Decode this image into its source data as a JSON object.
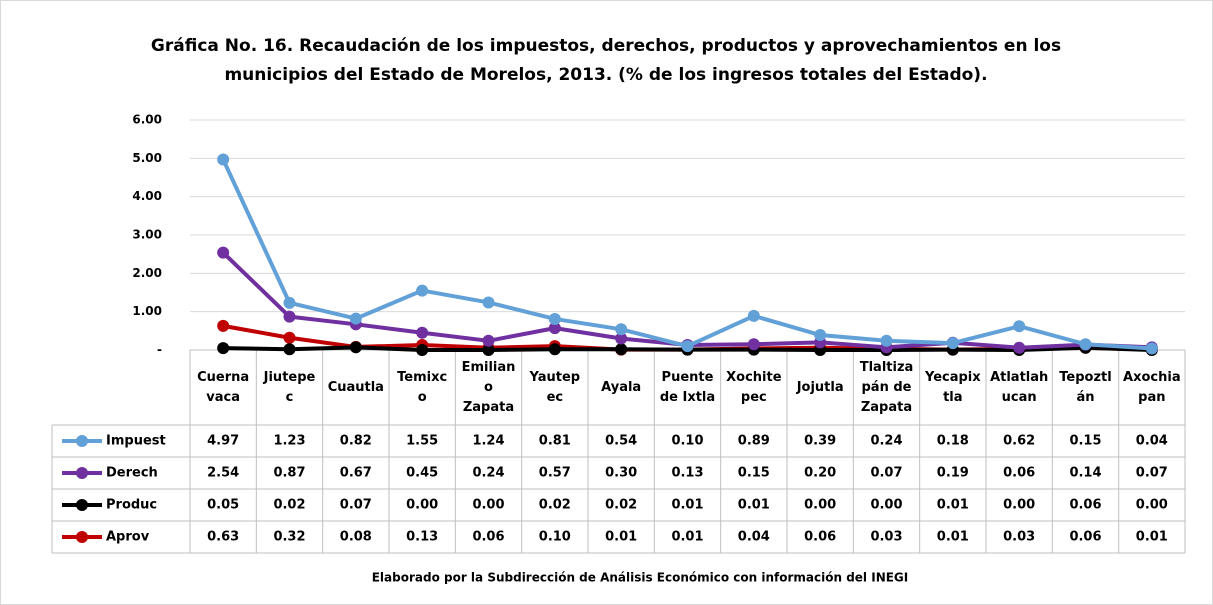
{
  "chart_data": {
    "type": "line",
    "title": [
      "Gráfica No. 16. Recaudación de los impuestos, derechos, productos y aprovechamientos en los",
      "municipios del Estado de Morelos, 2013. (% de los ingresos totales del Estado)."
    ],
    "categories": [
      "Cuerna\nvaca",
      "Jiutepe\nc",
      "Cuautla",
      "Temixc\no",
      "Emilian\no\nZapata",
      "Yautep\nec",
      "Ayala",
      "Puente\nde Ixtla",
      "Xochite\npec",
      "Jojutla",
      "Tlaltiza\npán de\nZapata",
      "Yecapix\ntla",
      "Atlatlah\nucan",
      "Tepoztl\nán",
      "Axochia\npan"
    ],
    "series": [
      {
        "name": "Impuest",
        "color": "#62a0d8",
        "values": [
          4.97,
          1.23,
          0.82,
          1.55,
          1.24,
          0.81,
          0.54,
          0.1,
          0.89,
          0.39,
          0.24,
          0.18,
          0.62,
          0.15,
          0.04
        ],
        "value_labels": [
          "4.97",
          "1.23",
          "0.82",
          "1.55",
          "1.24",
          "0.81",
          "0.54",
          "0.10",
          "0.89",
          "0.39",
          "0.24",
          "0.18",
          "0.62",
          "0.15",
          "0.04"
        ]
      },
      {
        "name": "Derech",
        "color": "#7030a0",
        "values": [
          2.54,
          0.87,
          0.67,
          0.45,
          0.24,
          0.57,
          0.3,
          0.13,
          0.15,
          0.2,
          0.07,
          0.19,
          0.06,
          0.14,
          0.07
        ],
        "value_labels": [
          "2.54",
          "0.87",
          "0.67",
          "0.45",
          "0.24",
          "0.57",
          "0.30",
          "0.13",
          "0.15",
          "0.20",
          "0.07",
          "0.19",
          "0.06",
          "0.14",
          "0.07"
        ]
      },
      {
        "name": "Produc",
        "color": "#000000",
        "values": [
          0.05,
          0.02,
          0.07,
          0,
          0,
          0.02,
          0.02,
          0.01,
          0.01,
          0,
          0,
          0.01,
          0,
          0.06,
          0
        ],
        "value_labels": [
          "0.05",
          "0.02",
          "0.07",
          "0.00",
          "0.00",
          "0.02",
          "0.02",
          "0.01",
          "0.01",
          "0.00",
          "0.00",
          "0.01",
          "0.00",
          "0.06",
          "0.00"
        ]
      },
      {
        "name": "Aprov",
        "color": "#c00000",
        "values": [
          0.63,
          0.32,
          0.08,
          0.13,
          0.06,
          0.1,
          0.01,
          0.01,
          0.04,
          0.06,
          0.03,
          0.01,
          0.03,
          0.06,
          0.01
        ],
        "value_labels": [
          "0.63",
          "0.32",
          "0.08",
          "0.13",
          "0.06",
          "0.10",
          "0.01",
          "0.01",
          "0.04",
          "0.06",
          "0.03",
          "0.01",
          "0.03",
          "0.06",
          "0.01"
        ]
      }
    ],
    "ylim": [
      0,
      6
    ],
    "yticks": [
      {
        "value": 0,
        "label": "-"
      },
      {
        "value": 1,
        "label": "1.00"
      },
      {
        "value": 2,
        "label": "2.00"
      },
      {
        "value": 3,
        "label": "3.00"
      },
      {
        "value": 4,
        "label": "4.00"
      },
      {
        "value": 5,
        "label": "5.00"
      },
      {
        "value": 6,
        "label": "6.00"
      }
    ],
    "grid": true,
    "source": "Elaborado por la Subdirección de Análisis Económico con información del INEGI"
  }
}
